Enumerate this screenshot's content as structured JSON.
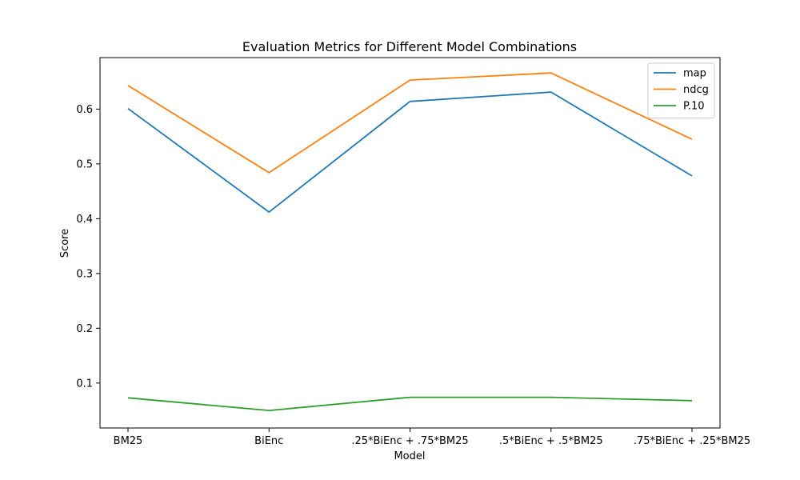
{
  "chart_data": {
    "type": "line",
    "title": "Evaluation Metrics for Different Model Combinations",
    "xlabel": "Model",
    "ylabel": "Score",
    "categories": [
      "BM25",
      "BiEnc",
      ".25*BiEnc + .75*BM25",
      ".5*BiEnc + .5*BM25",
      ".75*BiEnc + .25*BM25"
    ],
    "ylim": [
      0.018,
      0.694
    ],
    "yticks": [
      "0.1",
      "0.2",
      "0.3",
      "0.4",
      "0.5",
      "0.6"
    ],
    "grid": false,
    "legend_position": "top-right",
    "series": [
      {
        "name": "map",
        "color": "#1f77b4",
        "values": [
          0.601,
          0.412,
          0.614,
          0.631,
          0.478
        ]
      },
      {
        "name": "ndcg",
        "color": "#ff7f0e",
        "values": [
          0.643,
          0.484,
          0.653,
          0.666,
          0.545
        ]
      },
      {
        "name": "P.10",
        "color": "#2ca02c",
        "values": [
          0.073,
          0.05,
          0.074,
          0.074,
          0.068
        ]
      }
    ]
  }
}
